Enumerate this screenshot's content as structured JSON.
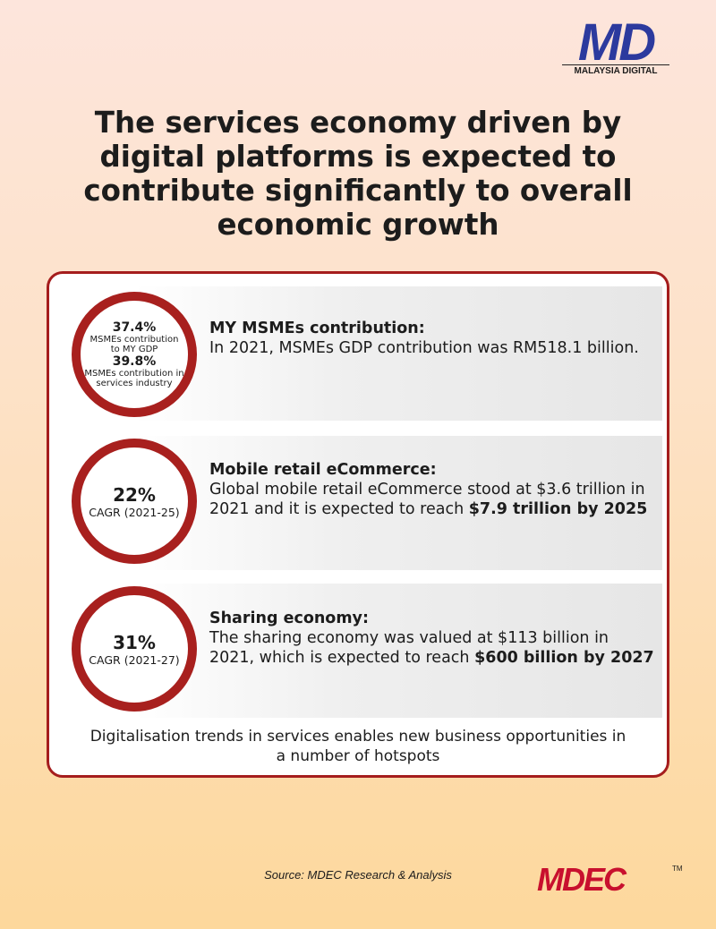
{
  "logo": {
    "mark": "MD",
    "name": "MALAYSIA DIGITAL"
  },
  "title": "The services economy driven by digital platforms is expected to contribute significantly to overall economic growth",
  "items": [
    {
      "circle": [
        {
          "stat": "37.4%",
          "caption": "MSMEs contribution to MY GDP"
        },
        {
          "stat": "39.8%",
          "caption": "MSMEs contribution in services industry"
        }
      ],
      "heading": "MY MSMEs contribution:",
      "body": "In 2021, MSMEs GDP contribution was RM518.1 billion.",
      "highlight": null
    },
    {
      "circle": [
        {
          "stat": "22%",
          "caption": "CAGR (2021-25)"
        }
      ],
      "heading": "Mobile retail eCommerce:",
      "body": "Global mobile retail eCommerce stood at $3.6 trillion in 2021 and it is expected to reach",
      "highlight": "$7.9 trillion by 2025"
    },
    {
      "circle": [
        {
          "stat": "31%",
          "caption": "CAGR (2021-27)"
        }
      ],
      "heading": "Sharing economy:",
      "body": "The sharing economy was valued at $113 billion in 2021, which is expected to reach",
      "highlight": "$600 billion by 2027"
    }
  ],
  "footnote": "Digitalisation trends in services enables new business opportunities in a number of hotspots",
  "source": "Source: MDEC Research & Analysis",
  "brand": {
    "mark": "MDEC",
    "tm": "TM"
  }
}
